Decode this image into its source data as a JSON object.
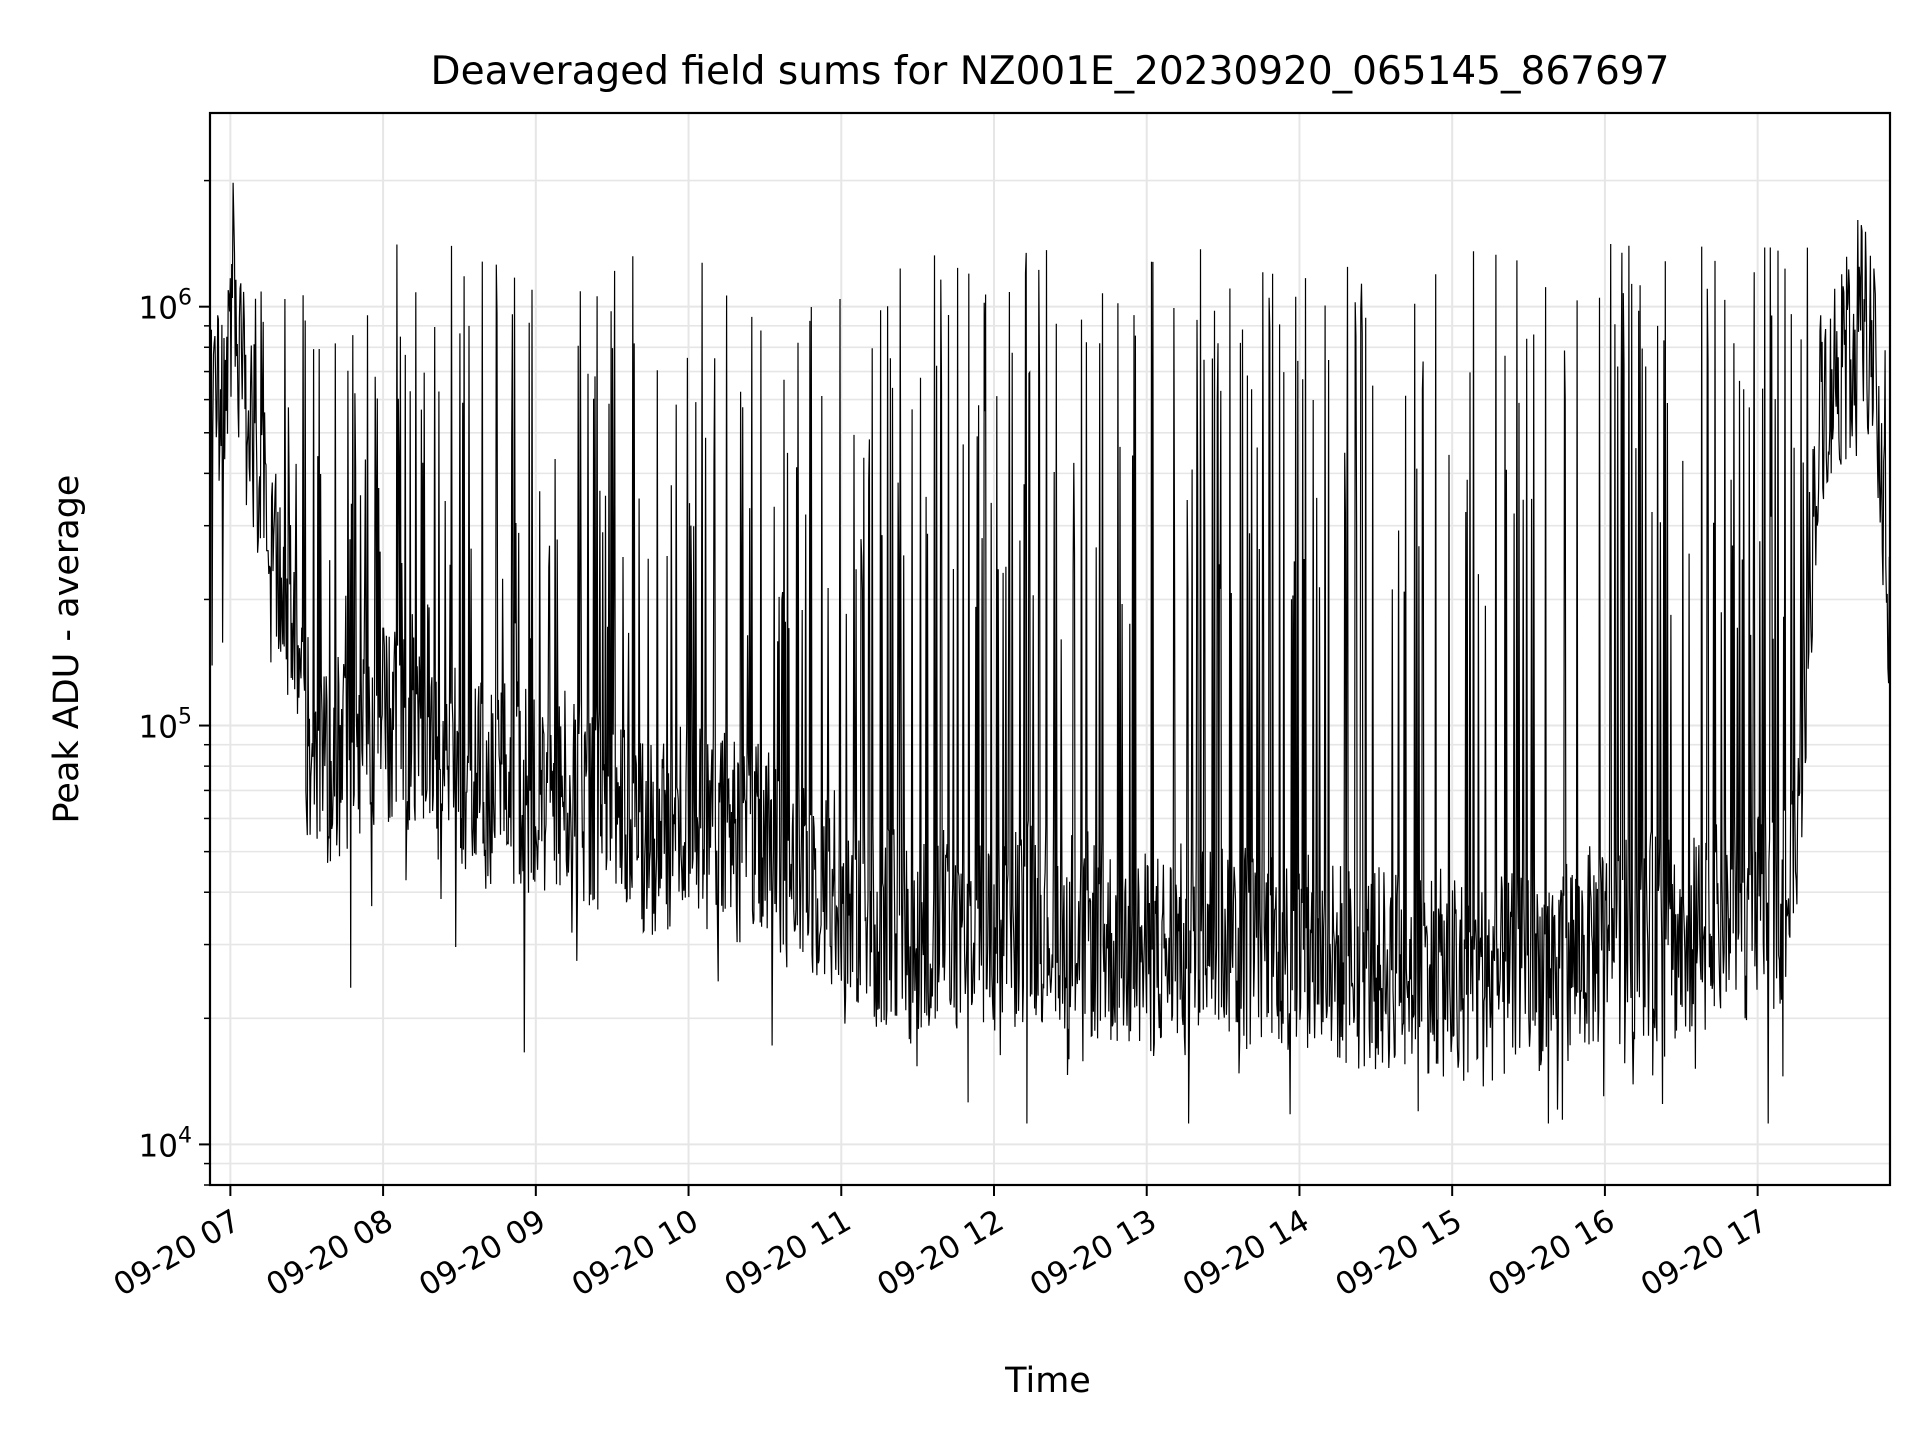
{
  "chart_data": {
    "type": "line",
    "title": "Deaveraged field sums for NZ001E_20230920_065145_867697",
    "xlabel": "Time",
    "ylabel": "Peak ADU - average",
    "x_scale": "time",
    "y_scale": "log",
    "xlim": [
      "2023-09-20 06:52",
      "2023-09-20 17:52"
    ],
    "ylim": [
      8000,
      2900000
    ],
    "grid": true,
    "legend": "none",
    "line_color": "#000000",
    "grid_color": "#e6e6e6",
    "x_ticks": [
      "09-20 07",
      "09-20 08",
      "09-20 09",
      "09-20 10",
      "09-20 11",
      "09-20 12",
      "09-20 13",
      "09-20 14",
      "09-20 15",
      "09-20 16",
      "09-20 17"
    ],
    "y_ticks": [
      {
        "base": "10",
        "exp": "4",
        "value": 10000
      },
      {
        "base": "10",
        "exp": "5",
        "value": 100000
      },
      {
        "base": "10",
        "exp": "6",
        "value": 1000000
      }
    ],
    "series": [
      {
        "x": [
          "06:52",
          "06:55",
          "06:58",
          "07:01",
          "07:04",
          "07:07",
          "07:10",
          "07:13",
          "07:16",
          "07:19",
          "07:22",
          "07:25",
          "07:28",
          "07:31",
          "07:34",
          "07:40",
          "07:46",
          "07:52",
          "08:00",
          "08:10",
          "08:20",
          "08:30",
          "08:40",
          "08:50",
          "09:00",
          "09:15",
          "09:30",
          "09:45",
          "10:00",
          "10:15",
          "10:30",
          "10:45",
          "11:00",
          "11:10",
          "11:20",
          "11:30",
          "11:45",
          "12:00",
          "12:15",
          "12:30",
          "12:45",
          "13:00",
          "13:15",
          "13:30",
          "13:45",
          "14:00",
          "14:15",
          "14:30",
          "14:45",
          "15:00",
          "15:15",
          "15:30",
          "15:45",
          "16:00",
          "16:15",
          "16:30",
          "16:45",
          "17:00",
          "17:15",
          "17:20",
          "17:25",
          "17:30",
          "17:35",
          "17:40",
          "17:45",
          "17:50",
          "17:52"
        ],
        "y": [
          500000,
          600000,
          650000,
          1200000,
          700000,
          550000,
          450000,
          350000,
          300000,
          250000,
          200000,
          150000,
          120000,
          95000,
          85000,
          80000,
          90000,
          85000,
          100000,
          95000,
          85000,
          80000,
          70000,
          75000,
          65000,
          70000,
          60000,
          55000,
          60000,
          55000,
          50000,
          45000,
          40000,
          35000,
          32000,
          30000,
          33000,
          30000,
          35000,
          33000,
          30000,
          28000,
          30000,
          32000,
          30000,
          28000,
          27000,
          26000,
          27000,
          25000,
          24000,
          26000,
          28000,
          30000,
          32000,
          30000,
          33000,
          35000,
          40000,
          200000,
          600000,
          700000,
          750000,
          1000000,
          800000,
          300000,
          150000
        ]
      }
    ]
  }
}
